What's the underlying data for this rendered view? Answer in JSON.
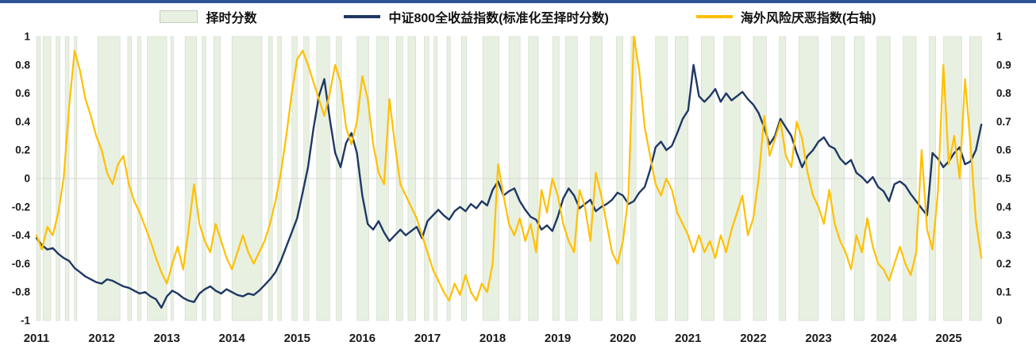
{
  "page": {
    "top_rule_color": "#2E5395"
  },
  "legend": {
    "items": [
      {
        "label": "择时分数",
        "swatch": "area",
        "color": "#E8F0E2",
        "border_color": "#C3CFBE"
      },
      {
        "label": "中证800全收益指数(标准化至择时分数)",
        "swatch": "line",
        "color": "#1F3864"
      },
      {
        "label": "海外风险厌恶指数(右轴)",
        "swatch": "line",
        "color": "#FFC000"
      }
    ]
  },
  "chart_data": {
    "type": "line",
    "title": "",
    "legend_position": "top",
    "grid": false,
    "zero_line_color": "#D6D6D6",
    "x": {
      "min": 2011,
      "max": 2025.62,
      "tick_years": [
        "2011",
        "2012",
        "2013",
        "2014",
        "2015",
        "2016",
        "2017",
        "2018",
        "2019",
        "2020",
        "2021",
        "2022",
        "2023",
        "2024",
        "2025"
      ]
    },
    "left_axis": {
      "min": -1,
      "max": 1,
      "tick_labels": [
        "1",
        "0.8",
        "0.6",
        "0.4",
        "0.2",
        "0",
        "-0.2",
        "-0.4",
        "-0.6",
        "-0.8",
        "-1"
      ]
    },
    "right_axis": {
      "min": 0,
      "max": 1,
      "tick_labels": [
        "1",
        "0.9",
        "0.8",
        "0.7",
        "0.6",
        "0.5",
        "0.4",
        "0.3",
        "0.2",
        "0.1",
        "0"
      ]
    },
    "bands": {
      "name": "择时分数",
      "color": "#E8F0E2",
      "border_color": "#C9D3C4",
      "intervals": [
        [
          2011.0,
          2011.06
        ],
        [
          2011.1,
          2011.22
        ],
        [
          2011.3,
          2011.36
        ],
        [
          2011.44,
          2011.5
        ],
        [
          2011.58,
          2011.62
        ],
        [
          2011.94,
          2012.28
        ],
        [
          2012.4,
          2012.46
        ],
        [
          2012.55,
          2012.6
        ],
        [
          2012.7,
          2013.0
        ],
        [
          2013.06,
          2013.1
        ],
        [
          2013.28,
          2013.46
        ],
        [
          2013.54,
          2013.6
        ],
        [
          2013.72,
          2013.82
        ],
        [
          2014.0,
          2014.46
        ],
        [
          2014.56,
          2014.62
        ],
        [
          2014.7,
          2014.76
        ],
        [
          2014.92,
          2015.0
        ],
        [
          2015.1,
          2015.18
        ],
        [
          2015.3,
          2015.5
        ],
        [
          2015.6,
          2015.68
        ],
        [
          2015.92,
          2016.1
        ],
        [
          2016.22,
          2016.4
        ],
        [
          2016.52,
          2016.62
        ],
        [
          2016.7,
          2016.82
        ],
        [
          2016.95,
          2017.02
        ],
        [
          2017.1,
          2017.15
        ],
        [
          2017.3,
          2017.35
        ],
        [
          2017.52,
          2017.6
        ],
        [
          2017.85,
          2018.1
        ],
        [
          2018.25,
          2018.42
        ],
        [
          2018.55,
          2018.7
        ],
        [
          2018.92,
          2019.02
        ],
        [
          2019.12,
          2019.3
        ],
        [
          2019.5,
          2019.68
        ],
        [
          2019.9,
          2020.0
        ],
        [
          2020.12,
          2020.2
        ],
        [
          2020.5,
          2020.68
        ],
        [
          2020.8,
          2021.0
        ],
        [
          2021.2,
          2021.4
        ],
        [
          2021.55,
          2021.8
        ],
        [
          2022.0,
          2022.2
        ],
        [
          2022.4,
          2022.5
        ],
        [
          2022.7,
          2023.0
        ],
        [
          2023.2,
          2023.4
        ],
        [
          2023.55,
          2023.7
        ],
        [
          2023.9,
          2024.1
        ],
        [
          2024.3,
          2024.5
        ],
        [
          2024.7,
          2024.8
        ],
        [
          2024.92,
          2025.2
        ],
        [
          2025.32,
          2025.5
        ]
      ]
    },
    "series": [
      {
        "name": "中证800全收益指数(标准化至择时分数)",
        "axis": "left",
        "color": "#1F3864",
        "width": 2.4,
        "x_start": 2011,
        "x_step_months": 1,
        "values": [
          -0.42,
          -0.47,
          -0.5,
          -0.49,
          -0.53,
          -0.56,
          -0.58,
          -0.63,
          -0.66,
          -0.69,
          -0.71,
          -0.73,
          -0.74,
          -0.71,
          -0.72,
          -0.74,
          -0.76,
          -0.77,
          -0.79,
          -0.81,
          -0.8,
          -0.83,
          -0.85,
          -0.91,
          -0.83,
          -0.79,
          -0.81,
          -0.84,
          -0.86,
          -0.87,
          -0.81,
          -0.78,
          -0.76,
          -0.79,
          -0.81,
          -0.78,
          -0.8,
          -0.82,
          -0.83,
          -0.81,
          -0.82,
          -0.79,
          -0.75,
          -0.71,
          -0.66,
          -0.58,
          -0.48,
          -0.38,
          -0.28,
          -0.1,
          0.08,
          0.35,
          0.58,
          0.7,
          0.42,
          0.18,
          0.08,
          0.25,
          0.32,
          0.18,
          -0.12,
          -0.32,
          -0.36,
          -0.3,
          -0.38,
          -0.44,
          -0.4,
          -0.36,
          -0.4,
          -0.37,
          -0.34,
          -0.42,
          -0.3,
          -0.26,
          -0.22,
          -0.26,
          -0.29,
          -0.23,
          -0.2,
          -0.23,
          -0.18,
          -0.21,
          -0.16,
          -0.19,
          -0.08,
          -0.02,
          -0.12,
          -0.09,
          -0.07,
          -0.16,
          -0.22,
          -0.27,
          -0.29,
          -0.36,
          -0.33,
          -0.37,
          -0.27,
          -0.14,
          -0.07,
          -0.12,
          -0.21,
          -0.18,
          -0.15,
          -0.23,
          -0.2,
          -0.18,
          -0.15,
          -0.1,
          -0.12,
          -0.18,
          -0.16,
          -0.1,
          -0.06,
          0.06,
          0.22,
          0.26,
          0.2,
          0.23,
          0.32,
          0.42,
          0.48,
          0.8,
          0.58,
          0.54,
          0.58,
          0.63,
          0.54,
          0.6,
          0.55,
          0.58,
          0.61,
          0.56,
          0.52,
          0.46,
          0.36,
          0.24,
          0.3,
          0.42,
          0.36,
          0.3,
          0.18,
          0.08,
          0.16,
          0.2,
          0.26,
          0.29,
          0.23,
          0.21,
          0.14,
          0.1,
          0.13,
          0.04,
          0.01,
          -0.03,
          0.01,
          -0.06,
          -0.09,
          -0.16,
          -0.04,
          -0.02,
          -0.05,
          -0.11,
          -0.16,
          -0.21,
          -0.26,
          0.18,
          0.14,
          0.08,
          0.12,
          0.18,
          0.22,
          0.1,
          0.12,
          0.2,
          0.38
        ]
      },
      {
        "name": "海外风险厌恶指数(右轴)",
        "axis": "right",
        "color": "#FFC000",
        "width": 2.2,
        "x_start": 2011,
        "x_step_months": 1,
        "values": [
          0.3,
          0.25,
          0.33,
          0.3,
          0.38,
          0.5,
          0.75,
          0.95,
          0.88,
          0.78,
          0.72,
          0.65,
          0.6,
          0.52,
          0.48,
          0.55,
          0.58,
          0.48,
          0.42,
          0.38,
          0.33,
          0.28,
          0.22,
          0.17,
          0.13,
          0.2,
          0.26,
          0.18,
          0.32,
          0.48,
          0.34,
          0.28,
          0.24,
          0.34,
          0.28,
          0.22,
          0.18,
          0.24,
          0.3,
          0.24,
          0.2,
          0.24,
          0.28,
          0.34,
          0.42,
          0.52,
          0.65,
          0.8,
          0.92,
          0.95,
          0.9,
          0.84,
          0.78,
          0.72,
          0.8,
          0.9,
          0.84,
          0.68,
          0.62,
          0.7,
          0.86,
          0.78,
          0.62,
          0.52,
          0.48,
          0.78,
          0.62,
          0.48,
          0.44,
          0.4,
          0.36,
          0.3,
          0.24,
          0.18,
          0.14,
          0.1,
          0.07,
          0.13,
          0.09,
          0.16,
          0.1,
          0.07,
          0.13,
          0.1,
          0.2,
          0.55,
          0.44,
          0.34,
          0.3,
          0.36,
          0.28,
          0.34,
          0.24,
          0.46,
          0.38,
          0.5,
          0.44,
          0.34,
          0.28,
          0.24,
          0.46,
          0.4,
          0.28,
          0.52,
          0.44,
          0.34,
          0.24,
          0.2,
          0.28,
          0.44,
          1.0,
          0.88,
          0.68,
          0.58,
          0.48,
          0.44,
          0.5,
          0.46,
          0.38,
          0.34,
          0.3,
          0.24,
          0.3,
          0.24,
          0.28,
          0.22,
          0.3,
          0.24,
          0.32,
          0.38,
          0.44,
          0.3,
          0.36,
          0.5,
          0.72,
          0.58,
          0.64,
          0.7,
          0.58,
          0.54,
          0.7,
          0.64,
          0.52,
          0.44,
          0.4,
          0.34,
          0.46,
          0.34,
          0.28,
          0.24,
          0.18,
          0.3,
          0.24,
          0.36,
          0.26,
          0.2,
          0.18,
          0.14,
          0.2,
          0.26,
          0.2,
          0.16,
          0.24,
          0.6,
          0.32,
          0.25,
          0.45,
          0.9,
          0.55,
          0.65,
          0.5,
          0.85,
          0.62,
          0.35,
          0.22
        ]
      }
    ]
  }
}
